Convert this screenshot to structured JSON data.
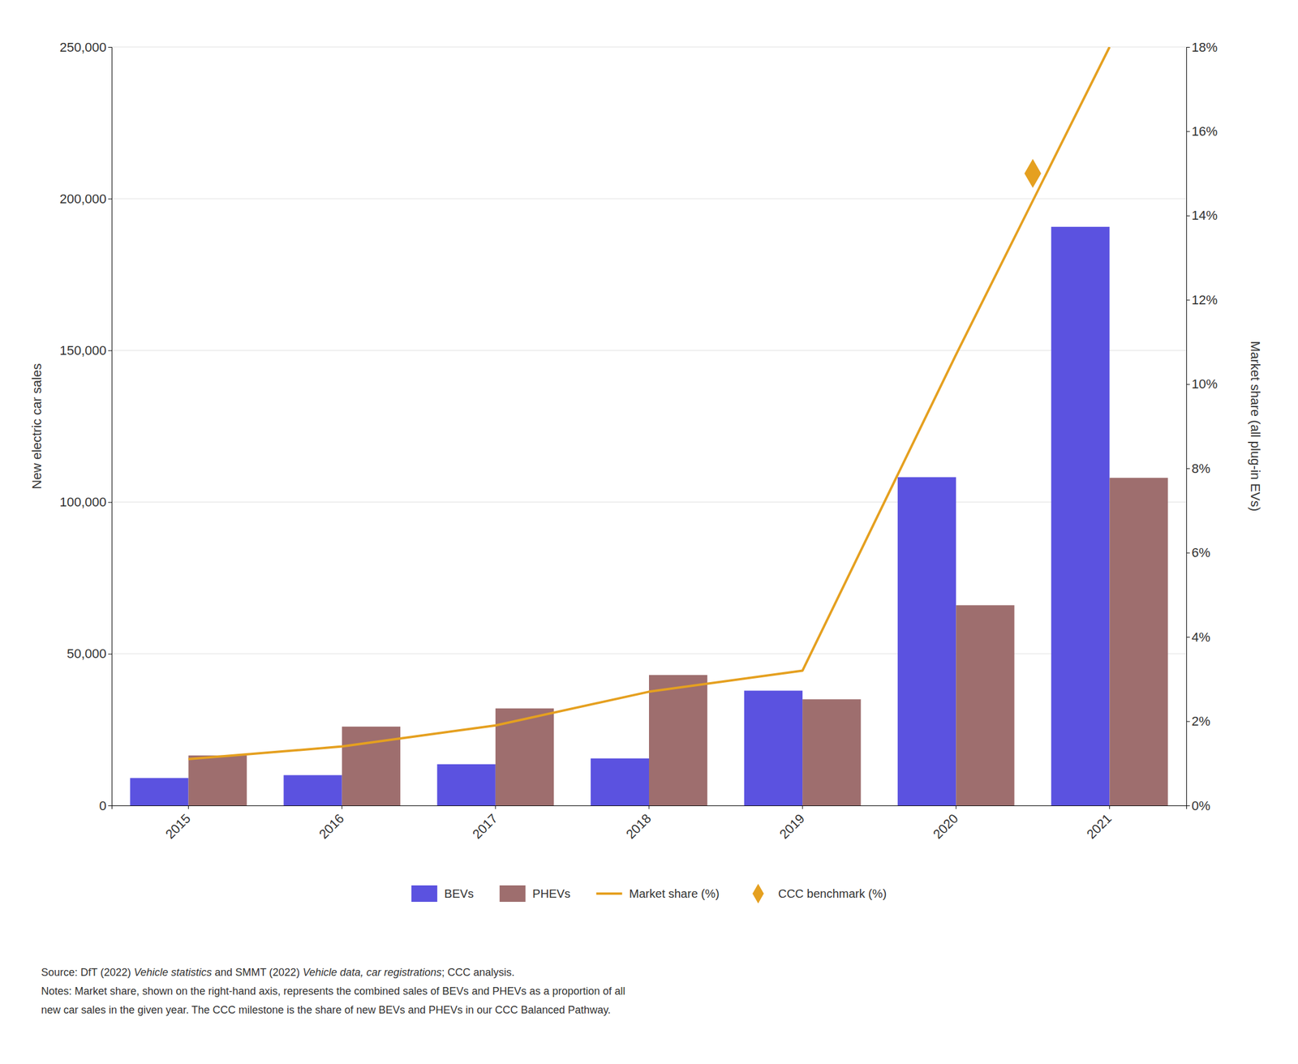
{
  "chart_data": {
    "type": "bar",
    "categories": [
      "2015",
      "2016",
      "2017",
      "2018",
      "2019",
      "2020",
      "2021"
    ],
    "series": [
      {
        "name": "BEVs",
        "type": "bar",
        "color": "#5b52e0",
        "values": [
          9049,
          10000,
          13597,
          15510,
          37850,
          108205,
          190727
        ]
      },
      {
        "name": "PHEVs",
        "type": "bar",
        "color": "#9e6e6e",
        "values": [
          16493,
          26000,
          32000,
          43000,
          35000,
          66000,
          108000
        ]
      },
      {
        "name": "Market share (%)",
        "type": "line",
        "axis": "y2",
        "color": "#e5a020",
        "values": [
          1.1,
          1.4,
          1.9,
          2.7,
          3.2,
          10.7,
          18.0
        ]
      },
      {
        "name": "CCC benchmark (%)",
        "type": "scatter",
        "marker": "diamond",
        "axis": "y2",
        "color": "#e5a020",
        "values": [
          null,
          null,
          null,
          null,
          null,
          null,
          15.0
        ]
      }
    ],
    "ylabel": "New electric car sales",
    "y2label": "Market share (all plug-in EVs)",
    "ylim": [
      0,
      250000
    ],
    "yticks": [
      0,
      {
        "value": 50000,
        "label": "50,000"
      },
      {
        "value": 100000,
        "label": "100,000"
      },
      {
        "value": 150000,
        "label": "150,000"
      },
      {
        "value": 200000,
        "label": "200,000"
      },
      {
        "value": 250000,
        "label": "250,000"
      }
    ],
    "y2lim": [
      0,
      18
    ],
    "y2ticks": [
      {
        "value": 0,
        "label": "0%"
      },
      {
        "value": 2,
        "label": "2%"
      },
      {
        "value": 4,
        "label": "4%"
      },
      {
        "value": 6,
        "label": "6%"
      },
      {
        "value": 8,
        "label": "8%"
      },
      {
        "value": 10,
        "label": "10%"
      },
      {
        "value": 12,
        "label": "12%"
      },
      {
        "value": 14,
        "label": "14%"
      },
      {
        "value": 16,
        "label": "16%"
      },
      {
        "value": 18,
        "label": "18%"
      }
    ],
    "grid": true,
    "legend": "bottom",
    "annotations": [
      [
        "Source: DfT (2022) ",
        "Vehicle statistics",
        " and SMMT (2022) ",
        "Vehicle data, car registrations",
        "; CCC analysis."
      ],
      "Notes: Market share, shown on the right-hand axis, represents the combined sales of BEVs and PHEVs as a proportion of all",
      "new car sales in the given year. The CCC milestone is the share of new BEVs and PHEVs in our CCC Balanced Pathway."
    ]
  }
}
